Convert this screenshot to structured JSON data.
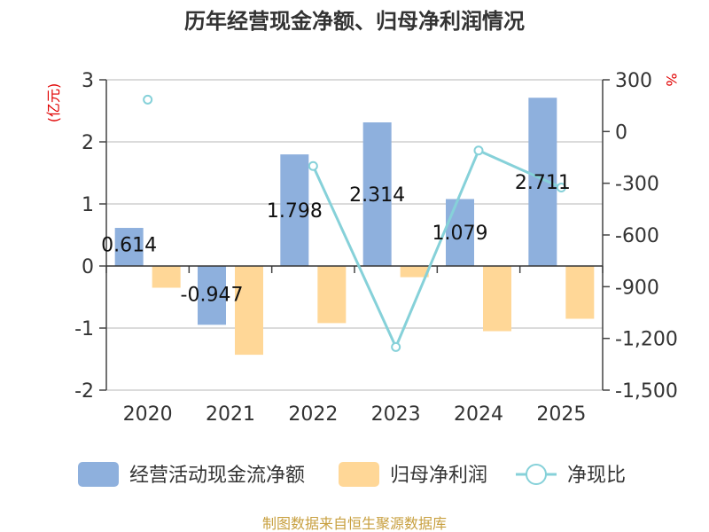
{
  "chart_data": {
    "type": "bar",
    "title": "历年经营现金净额、归母净利润情况",
    "categories": [
      "2020",
      "2021",
      "2022",
      "2023",
      "2024",
      "2025"
    ],
    "y_left": {
      "unit": "(亿元)",
      "ylim": [
        -2,
        3
      ],
      "ticks": [
        "3",
        "2",
        "1",
        "0",
        "-1",
        "-2"
      ]
    },
    "y_right": {
      "unit": "%",
      "ylim": [
        -1500,
        300
      ],
      "ticks": [
        "300",
        "0",
        "-300",
        "-600",
        "-900",
        "-1,200",
        "-1,500"
      ]
    },
    "series": [
      {
        "name": "经营活动现金流净额",
        "type": "bar",
        "color": "#8eb0dd",
        "values": [
          0.614,
          -0.947,
          1.798,
          2.314,
          1.079,
          2.711
        ],
        "labels": [
          "0.614",
          "-0.947",
          "1.798",
          "2.314",
          "1.079",
          "2.711"
        ]
      },
      {
        "name": "归母净利润",
        "type": "bar",
        "color": "#ffd797",
        "values": [
          -0.35,
          -1.43,
          -0.92,
          -0.18,
          -1.05,
          -0.85
        ]
      },
      {
        "name": "净现比",
        "type": "line",
        "axis": "right",
        "color": "#86d1d9",
        "values": [
          185,
          null,
          -200,
          -1250,
          -110,
          -325
        ]
      }
    ],
    "grid": true,
    "legend_position": "bottom"
  },
  "source": "制图数据来自恒生聚源数据库"
}
